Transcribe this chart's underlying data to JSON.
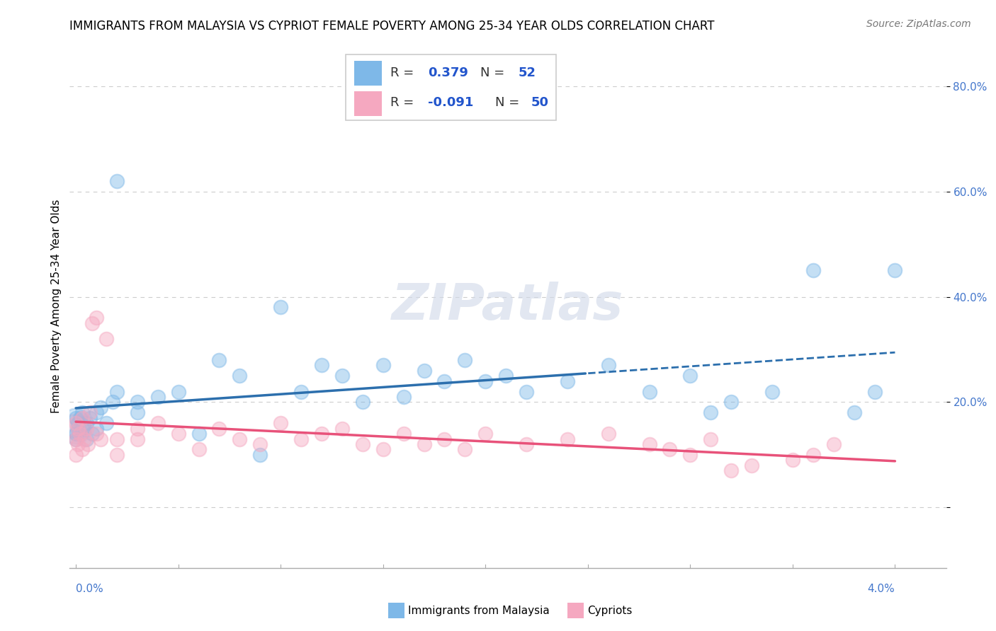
{
  "title": "IMMIGRANTS FROM MALAYSIA VS CYPRIOT FEMALE POVERTY AMONG 25-34 YEAR OLDS CORRELATION CHART",
  "source": "Source: ZipAtlas.com",
  "ylabel": "Female Poverty Among 25-34 Year Olds",
  "blue_color": "#7eb8e8",
  "pink_color": "#f5a8c0",
  "blue_line_color": "#2c6fad",
  "pink_line_color": "#e8527a",
  "title_fontsize": 12,
  "source_fontsize": 10,
  "R_blue": 0.379,
  "N_blue": 52,
  "R_pink": -0.091,
  "N_pink": 50,
  "xlim": [
    -0.0003,
    0.0425
  ],
  "ylim": [
    -0.115,
    0.88
  ],
  "ytick_vals": [
    0.0,
    0.2,
    0.4,
    0.6,
    0.8
  ],
  "ytick_labels": [
    "",
    "20.0%",
    "40.0%",
    "60.0%",
    "80.0%"
  ],
  "blue_x": [
    0.0,
    0.0,
    0.0,
    0.0001,
    0.0001,
    0.0002,
    0.0002,
    0.0003,
    0.0003,
    0.0005,
    0.0005,
    0.0007,
    0.0008,
    0.001,
    0.001,
    0.0012,
    0.0015,
    0.0018,
    0.002,
    0.002,
    0.003,
    0.003,
    0.004,
    0.005,
    0.006,
    0.007,
    0.008,
    0.009,
    0.01,
    0.011,
    0.012,
    0.013,
    0.014,
    0.015,
    0.016,
    0.017,
    0.018,
    0.019,
    0.02,
    0.021,
    0.022,
    0.024,
    0.026,
    0.028,
    0.03,
    0.031,
    0.032,
    0.034,
    0.036,
    0.038,
    0.039,
    0.04
  ],
  "blue_y": [
    0.17,
    0.14,
    0.13,
    0.16,
    0.15,
    0.17,
    0.14,
    0.15,
    0.18,
    0.16,
    0.13,
    0.17,
    0.14,
    0.18,
    0.15,
    0.19,
    0.16,
    0.2,
    0.22,
    0.62,
    0.2,
    0.18,
    0.21,
    0.22,
    0.14,
    0.28,
    0.25,
    0.1,
    0.38,
    0.22,
    0.27,
    0.25,
    0.2,
    0.27,
    0.21,
    0.26,
    0.24,
    0.28,
    0.24,
    0.25,
    0.22,
    0.24,
    0.27,
    0.22,
    0.25,
    0.18,
    0.2,
    0.22,
    0.45,
    0.18,
    0.22,
    0.45
  ],
  "pink_x": [
    0.0,
    0.0,
    0.0,
    0.0001,
    0.0001,
    0.0002,
    0.0003,
    0.0003,
    0.0004,
    0.0005,
    0.0006,
    0.0007,
    0.0008,
    0.001,
    0.001,
    0.0012,
    0.0015,
    0.002,
    0.002,
    0.003,
    0.003,
    0.004,
    0.005,
    0.006,
    0.007,
    0.008,
    0.009,
    0.01,
    0.011,
    0.012,
    0.013,
    0.014,
    0.015,
    0.016,
    0.017,
    0.018,
    0.019,
    0.02,
    0.022,
    0.024,
    0.026,
    0.028,
    0.029,
    0.03,
    0.031,
    0.032,
    0.033,
    0.035,
    0.036,
    0.037
  ],
  "pink_y": [
    0.16,
    0.13,
    0.1,
    0.15,
    0.12,
    0.14,
    0.11,
    0.17,
    0.13,
    0.15,
    0.12,
    0.18,
    0.35,
    0.36,
    0.14,
    0.13,
    0.32,
    0.13,
    0.1,
    0.15,
    0.13,
    0.16,
    0.14,
    0.11,
    0.15,
    0.13,
    0.12,
    0.16,
    0.13,
    0.14,
    0.15,
    0.12,
    0.11,
    0.14,
    0.12,
    0.13,
    0.11,
    0.14,
    0.12,
    0.13,
    0.14,
    0.12,
    0.11,
    0.1,
    0.13,
    0.07,
    0.08,
    0.09,
    0.1,
    0.12
  ]
}
